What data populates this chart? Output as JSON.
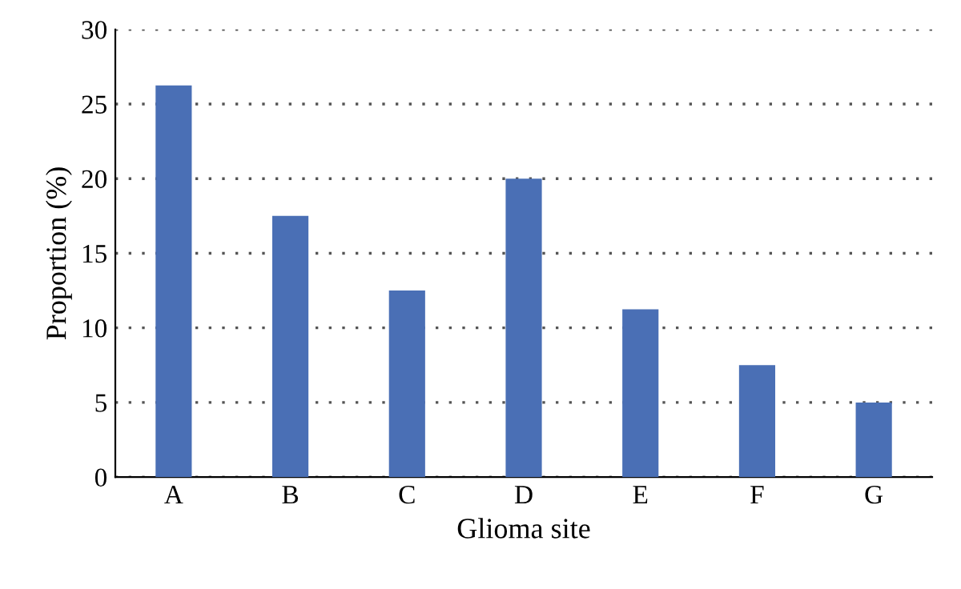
{
  "chart_data": {
    "type": "bar",
    "xlabel": "Glioma site",
    "ylabel": "Proportion (%)",
    "categories": [
      "A",
      "B",
      "C",
      "D",
      "E",
      "F",
      "G"
    ],
    "values": [
      26.25,
      17.5,
      12.5,
      20,
      11.25,
      7.5,
      5
    ],
    "color": "#4a6fb5",
    "ylim": [
      0,
      30
    ],
    "yticks": [
      0,
      5,
      10,
      15,
      20,
      25,
      30
    ],
    "grid": "y"
  }
}
